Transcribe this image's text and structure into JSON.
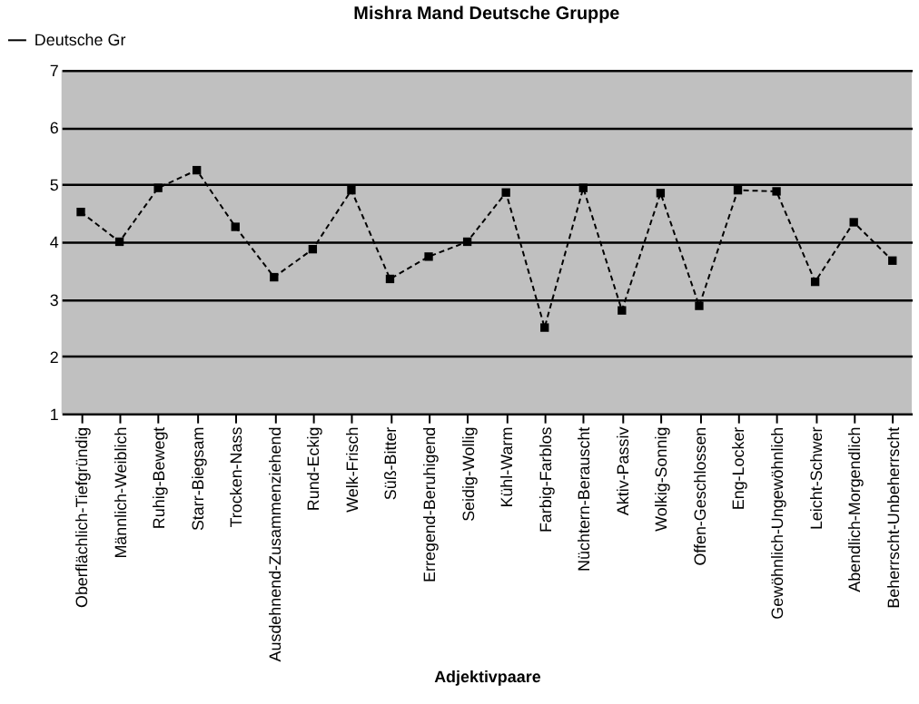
{
  "chart_data": {
    "type": "line",
    "title": "Mishra Mand Deutsche Gruppe",
    "xlabel": "Adjektivpaare",
    "categories": [
      "Oberflächlich-Tiefgründig",
      "Männlich-Weiblich",
      "Ruhig-Bewegt",
      "Starr-Biegsam",
      "Trocken-Nass",
      "Ausdehnend-Zusammenziehend",
      "Rund-Eckig",
      "Welk-Frisch",
      "Süß-Bitter",
      "Erregend-Beruhigend",
      "Seidig-Wollig",
      "Kühl-Warm",
      "Farbig-Farblos",
      "Nüchtern-Berauscht",
      "Aktiv-Passiv",
      "Wolkig-Sonnig",
      "Offen-Geschlossen",
      "Eng-Locker",
      "Gewöhnlich-Ungewöhnlich",
      "Leicht-Schwer",
      "Abendlich-Morgendlich",
      "Beherrscht-Unbeherrscht"
    ],
    "series": [
      {
        "name": "Deutsche Gr",
        "color": "#000000",
        "values": [
          4.52,
          4.0,
          4.94,
          5.25,
          4.26,
          3.38,
          3.87,
          4.9,
          3.35,
          3.74,
          4.0,
          4.86,
          2.5,
          4.94,
          2.8,
          4.85,
          2.88,
          4.9,
          4.88,
          3.3,
          4.34,
          3.67
        ]
      }
    ],
    "ylim": [
      1,
      7
    ],
    "yticks": [
      1,
      2,
      3,
      4,
      5,
      6,
      7
    ],
    "grid": "y",
    "legend": "top left",
    "marker": "square",
    "line_style": "dashed"
  }
}
